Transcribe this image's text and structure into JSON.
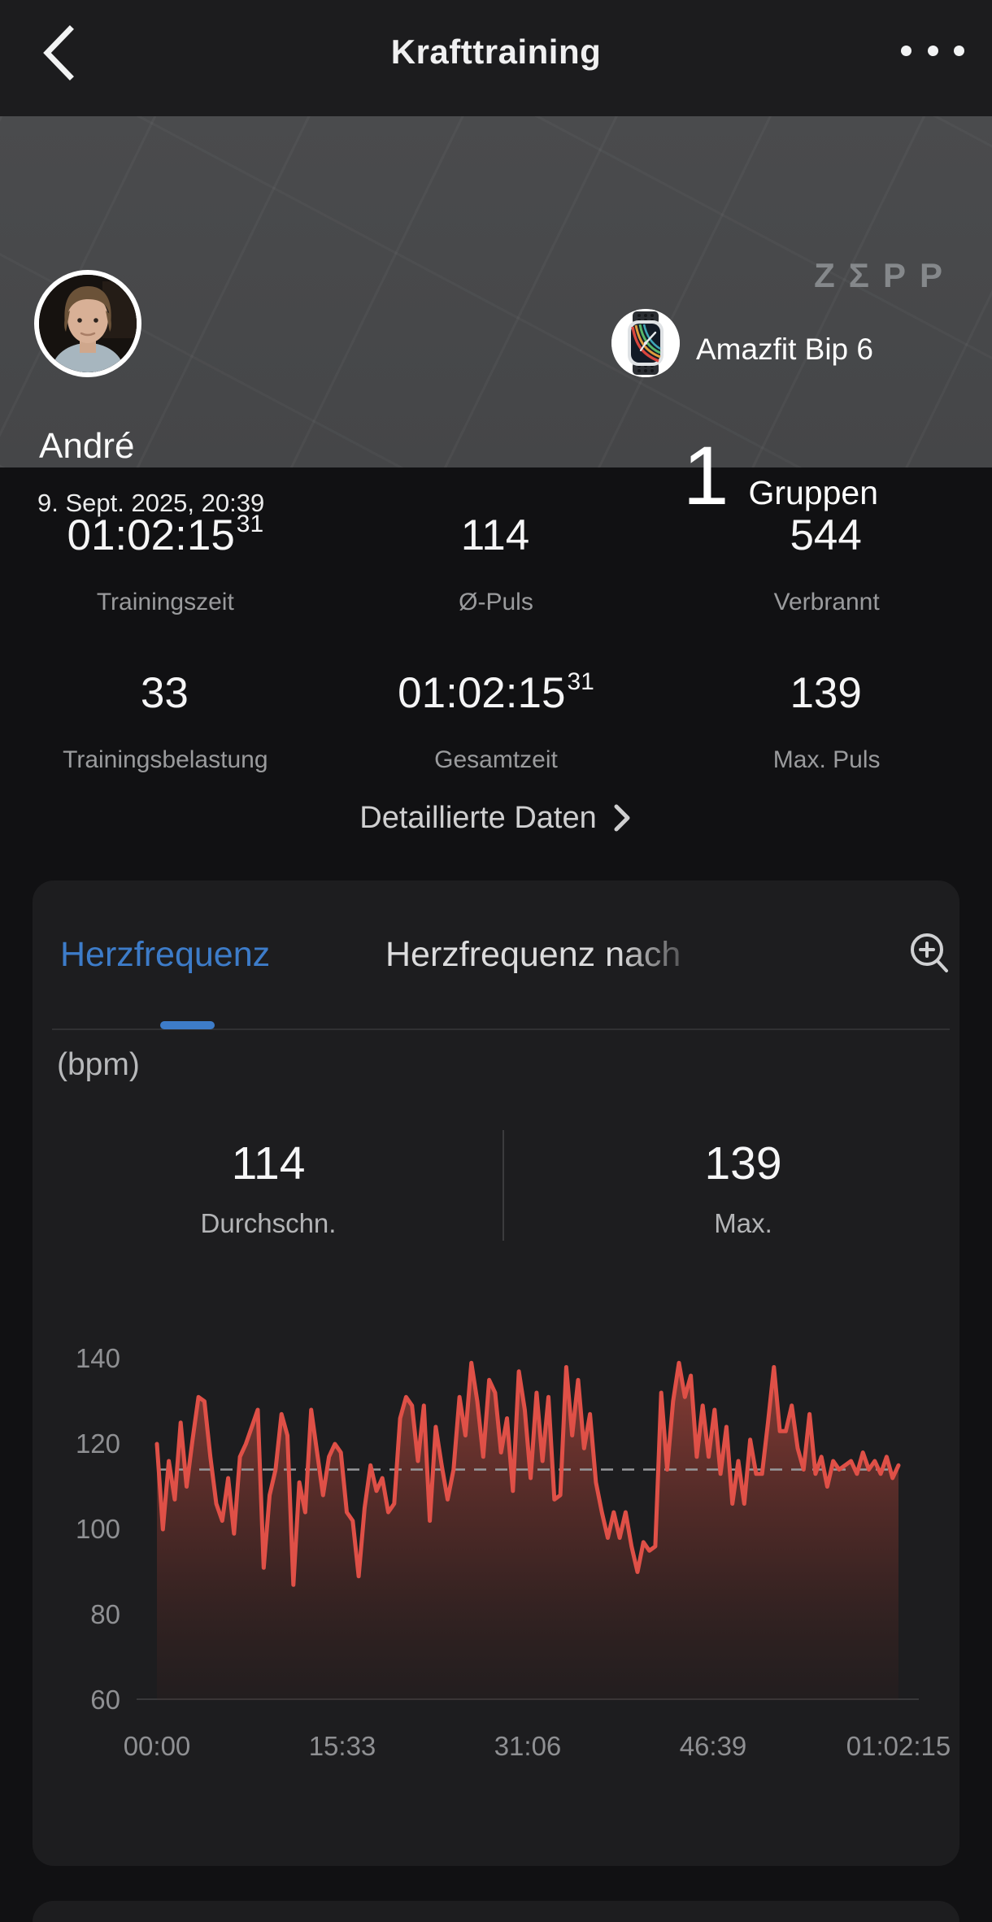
{
  "nav": {
    "title": "Krafttraining"
  },
  "header": {
    "user_name": "André",
    "datetime": "9. Sept. 2025, 20:39",
    "brand_logo": "ZΣPP",
    "device_name": "Amazfit Bip 6",
    "groups_count": "1",
    "groups_label": "Gruppen"
  },
  "stats": {
    "items": [
      {
        "value": "01:02:15",
        "sup": "31",
        "label": "Trainingszeit"
      },
      {
        "value": "114",
        "sup": "",
        "label": "Ø-Puls"
      },
      {
        "value": "544",
        "sup": "",
        "label": "Verbrannt"
      },
      {
        "value": "33",
        "sup": "",
        "label": "Trainingsbelastung"
      },
      {
        "value": "01:02:15",
        "sup": "31",
        "label": "Gesamtzeit"
      },
      {
        "value": "139",
        "sup": "",
        "label": "Max. Puls"
      }
    ]
  },
  "details_link": {
    "label": "Detaillierte Daten"
  },
  "hr_card": {
    "tab_active": "Herzfrequenz",
    "tab_inactive": "Herzfrequenz nach",
    "unit": "(bpm)",
    "avg_value": "114",
    "avg_label": "Durchschn.",
    "max_value": "139",
    "max_label": "Max."
  },
  "colors": {
    "accent_blue": "#3d7cc9",
    "line_red": "#df5047",
    "dash_gray": "#97989b",
    "card_bg": "#1d1d1f",
    "header_bg": "#47484a"
  },
  "chart_data": {
    "type": "area",
    "title": "Herzfrequenz",
    "ylabel": "(bpm)",
    "ylim": [
      60,
      140
    ],
    "y_ticks": [
      140,
      120,
      100,
      80,
      60
    ],
    "x_ticks": [
      "00:00",
      "15:33",
      "31:06",
      "46:39",
      "01:02:15"
    ],
    "duration_seconds": 3735,
    "sample_interval_seconds": 30,
    "average_bpm": 114,
    "max_bpm": 139,
    "grid": false,
    "legend": "none",
    "series": [
      {
        "name": "Herzfrequenz (bpm)",
        "values": [
          120,
          100,
          116,
          107,
          125,
          110,
          121,
          131,
          130,
          117,
          106,
          102,
          112,
          99,
          117,
          120,
          124,
          128,
          91,
          108,
          114,
          127,
          122,
          87,
          111,
          104,
          128,
          118,
          108,
          117,
          120,
          118,
          104,
          102,
          89,
          105,
          115,
          109,
          112,
          104,
          106,
          126,
          131,
          129,
          116,
          129,
          102,
          124,
          115,
          107,
          114,
          131,
          122,
          139,
          130,
          117,
          135,
          132,
          118,
          126,
          109,
          137,
          128,
          112,
          132,
          116,
          131,
          107,
          108,
          138,
          122,
          135,
          119,
          127,
          111,
          104,
          98,
          104,
          98,
          104,
          96,
          90,
          97,
          95,
          96,
          132,
          114,
          130,
          139,
          131,
          136,
          117,
          129,
          117,
          128,
          113,
          124,
          106,
          116,
          106,
          121,
          113,
          113,
          125,
          138,
          123,
          123,
          129,
          119,
          114,
          127,
          113,
          117,
          110,
          116,
          114,
          115,
          116,
          113,
          118,
          114,
          116,
          113,
          117,
          112,
          115
        ]
      }
    ]
  }
}
